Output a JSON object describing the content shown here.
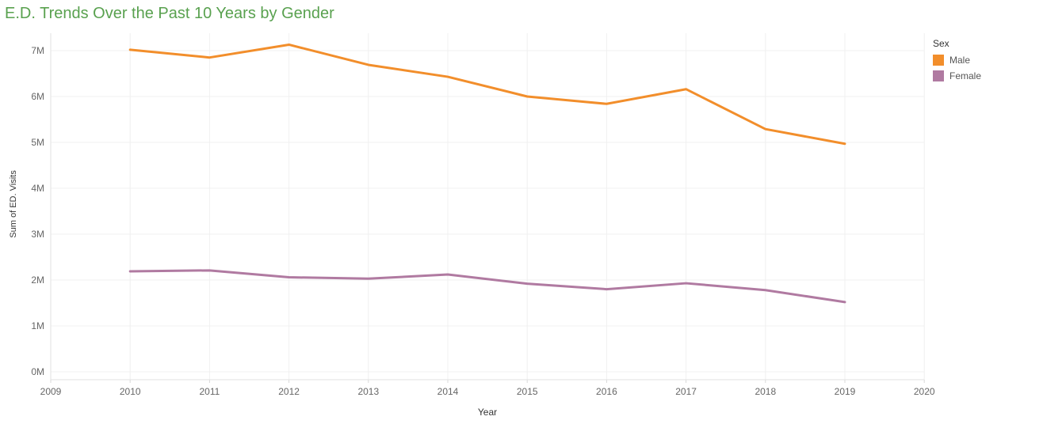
{
  "title": "E.D. Trends Over the Past 10 Years by Gender",
  "legend": {
    "title": "Sex"
  },
  "chart_data": {
    "type": "line",
    "title": "E.D. Trends Over the Past 10 Years by Gender",
    "xlabel": "Year",
    "ylabel": "Sum of ED. Visits",
    "x": [
      2010,
      2011,
      2012,
      2013,
      2014,
      2015,
      2016,
      2017,
      2018,
      2019
    ],
    "x_ticks": [
      "2009",
      "2010",
      "2011",
      "2012",
      "2013",
      "2014",
      "2015",
      "2016",
      "2017",
      "2018",
      "2019",
      "2020"
    ],
    "y_ticks": [
      "0M",
      "1M",
      "2M",
      "3M",
      "4M",
      "5M",
      "6M",
      "7M"
    ],
    "xlim": [
      2009,
      2020
    ],
    "ylim": [
      0,
      7000000
    ],
    "grid": true,
    "legend_position": "top-right",
    "series": [
      {
        "name": "Male",
        "color": "#f28e2b",
        "values": [
          7020000,
          6850000,
          7130000,
          6690000,
          6430000,
          6000000,
          5840000,
          6160000,
          5290000,
          4970000
        ]
      },
      {
        "name": "Female",
        "color": "#b07aa1",
        "values": [
          2190000,
          2210000,
          2060000,
          2030000,
          2120000,
          1920000,
          1800000,
          1930000,
          1780000,
          1520000
        ]
      }
    ]
  }
}
